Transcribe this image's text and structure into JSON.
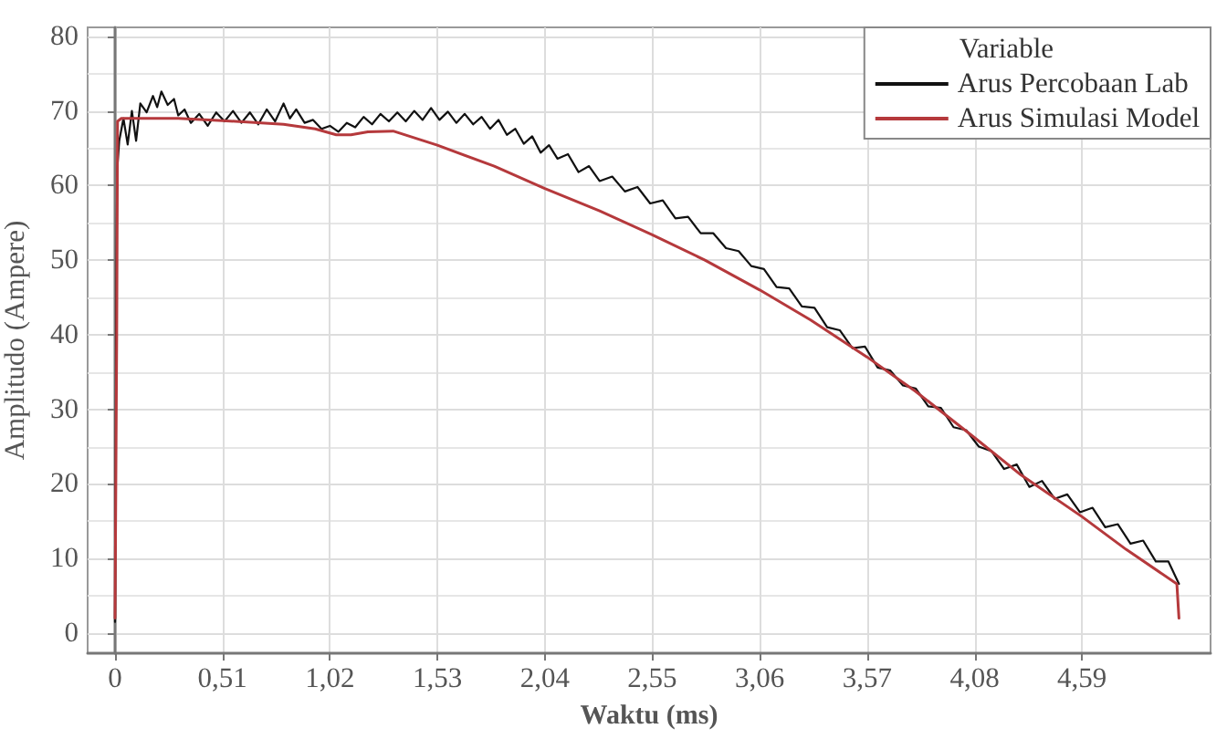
{
  "chart_data": {
    "type": "line",
    "xlabel": "Waktu (ms)",
    "ylabel": "Amplitudo (Ampere)",
    "legend_title": "Variable",
    "legend": "top right",
    "grid": true,
    "marker": "none",
    "line_style": "solid",
    "xlim": [
      -0.13,
      5.2
    ],
    "xticks": [
      0,
      {
        "value": 0.51,
        "label": "0,51"
      },
      {
        "value": 1.02,
        "label": "1,02"
      },
      {
        "value": 1.53,
        "label": "1,53"
      },
      {
        "value": 2.04,
        "label": "2,04"
      },
      {
        "value": 2.55,
        "label": "2,55"
      },
      {
        "value": 3.06,
        "label": "3,06"
      },
      {
        "value": 3.57,
        "label": "3,57"
      },
      {
        "value": 4.08,
        "label": "4,08"
      },
      {
        "value": 4.59,
        "label": "4,59"
      }
    ],
    "ylim": [
      -2.7,
      81.2
    ],
    "yticks": [
      0,
      10,
      20,
      30,
      40,
      50,
      60,
      70,
      80
    ],
    "series": [
      {
        "name": "Arus Percobaan Lab",
        "color": "#111111",
        "x": [
          0,
          0.005,
          0.01,
          0.02,
          0.04,
          0.06,
          0.08,
          0.1,
          0.12,
          0.15,
          0.18,
          0.2,
          0.22,
          0.25,
          0.28,
          0.3,
          0.33,
          0.36,
          0.4,
          0.44,
          0.48,
          0.52,
          0.56,
          0.6,
          0.64,
          0.68,
          0.72,
          0.76,
          0.8,
          0.83,
          0.86,
          0.9,
          0.94,
          0.98,
          1.02,
          1.06,
          1.1,
          1.14,
          1.18,
          1.22,
          1.26,
          1.3,
          1.34,
          1.38,
          1.42,
          1.46,
          1.5,
          1.54,
          1.58,
          1.62,
          1.66,
          1.7,
          1.74,
          1.78,
          1.82,
          1.86,
          1.9,
          1.94,
          1.98,
          2.02,
          2.06,
          2.1,
          2.15,
          2.2,
          2.25,
          2.3,
          2.36,
          2.42,
          2.48,
          2.54,
          2.6,
          2.66,
          2.72,
          2.78,
          2.84,
          2.9,
          2.96,
          3.02,
          3.08,
          3.14,
          3.2,
          3.26,
          3.32,
          3.38,
          3.44,
          3.5,
          3.56,
          3.62,
          3.68,
          3.74,
          3.8,
          3.86,
          3.92,
          3.98,
          4.04,
          4.1,
          4.16,
          4.22,
          4.28,
          4.34,
          4.4,
          4.46,
          4.52,
          4.58,
          4.64,
          4.7,
          4.76,
          4.82,
          4.88,
          4.94,
          5.0,
          5.05
        ],
        "values": [
          1.5,
          40,
          62,
          66,
          69,
          65.5,
          70,
          66,
          71,
          69.8,
          72,
          70.5,
          72.6,
          70.8,
          71.6,
          69.4,
          70.2,
          68.4,
          69.6,
          68,
          69.8,
          68.6,
          70,
          68.4,
          69.8,
          68.2,
          70.2,
          68.6,
          71,
          69,
          70.2,
          68.4,
          68.8,
          67.6,
          68,
          67.2,
          68.4,
          67.8,
          69.2,
          68.2,
          69.6,
          68.6,
          69.8,
          68.6,
          70,
          68.8,
          70.4,
          68.8,
          69.9,
          68.4,
          69.6,
          68.2,
          69.2,
          67.6,
          68.8,
          66.8,
          67.6,
          65.6,
          66.6,
          64.4,
          65.4,
          63.6,
          64.2,
          61.8,
          62.6,
          60.6,
          61.2,
          59.2,
          59.8,
          57.6,
          58,
          55.6,
          55.8,
          53.6,
          53.6,
          51.6,
          51.2,
          49.2,
          48.8,
          46.4,
          46.2,
          43.8,
          43.6,
          41,
          40.6,
          38.2,
          38.4,
          35.6,
          35.2,
          33.2,
          32.8,
          30.4,
          30.2,
          27.6,
          27.2,
          25,
          24.4,
          22,
          22.6,
          19.6,
          20.4,
          18,
          18.6,
          16.2,
          16.8,
          14.2,
          14.6,
          12,
          12.4,
          9.6,
          9.6,
          6.6
        ]
      },
      {
        "name": "Arus Simulasi Model",
        "color": "#b5393c",
        "x": [
          0,
          0.008,
          0.012,
          0.03,
          0.3,
          0.51,
          0.8,
          0.95,
          1.05,
          1.12,
          1.2,
          1.32,
          1.53,
          1.8,
          2.04,
          2.3,
          2.55,
          2.8,
          3.06,
          3.3,
          3.57,
          3.8,
          4.08,
          4.3,
          4.59,
          4.8,
          5.04,
          5.05
        ],
        "values": [
          2,
          40,
          68.6,
          69,
          69,
          68.7,
          68.2,
          67.6,
          66.8,
          66.8,
          67.2,
          67.3,
          65.4,
          62.6,
          59.6,
          56.6,
          53.4,
          50,
          46,
          42,
          37,
          32.4,
          26.2,
          21.2,
          15.6,
          11.2,
          6.6,
          2
        ]
      }
    ]
  }
}
